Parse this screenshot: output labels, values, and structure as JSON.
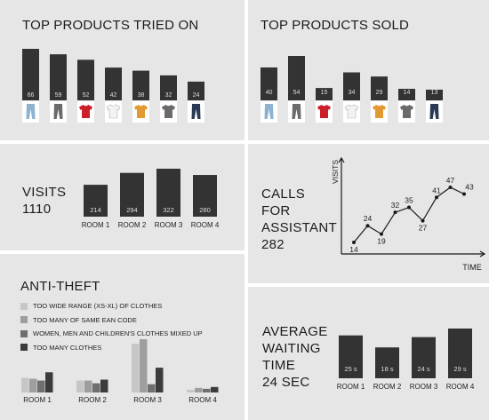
{
  "colors": {
    "bar": "#333333",
    "bar_label": "#dddddd",
    "panel": "#e6e6e7",
    "line": "#1a1a1a"
  },
  "chart_data": [
    {
      "type": "bar",
      "title": "TOP PRODUCTS TRIED ON",
      "categories": [
        "light-blue-jeans",
        "grey-jeans",
        "red-tshirt",
        "white-tshirt",
        "orange-tshirt",
        "grey-tshirt",
        "dark-jeans"
      ],
      "icons": [
        "jeans-light-icon",
        "jeans-grey-icon",
        "tshirt-red-icon",
        "tshirt-white-icon",
        "tshirt-orange-icon",
        "tshirt-grey-icon",
        "jeans-dark-icon"
      ],
      "values": [
        66,
        59,
        52,
        42,
        38,
        32,
        24
      ],
      "ylim": [
        0,
        66
      ]
    },
    {
      "type": "bar",
      "title": "TOP PRODUCTS SOLD",
      "categories": [
        "light-blue-jeans",
        "grey-jeans",
        "red-tshirt",
        "white-tshirt",
        "orange-tshirt",
        "grey-tshirt",
        "dark-jeans"
      ],
      "icons": [
        "jeans-light-icon",
        "jeans-grey-icon",
        "tshirt-red-icon",
        "tshirt-white-icon",
        "tshirt-orange-icon",
        "tshirt-grey-icon",
        "jeans-dark-icon"
      ],
      "values": [
        40,
        54,
        15,
        34,
        29,
        14,
        13
      ],
      "ylim": [
        0,
        54
      ]
    },
    {
      "type": "bar",
      "title": "VISITS",
      "total": "1110",
      "categories": [
        "ROOM 1",
        "ROOM 2",
        "ROOM 3",
        "ROOM 4"
      ],
      "values": [
        214,
        294,
        322,
        280
      ],
      "ylim": [
        0,
        322
      ]
    },
    {
      "type": "line",
      "title_lines": [
        "CALLS",
        "FOR",
        "ASSISTANT"
      ],
      "total": "282",
      "xlabel": "TIME",
      "ylabel": "VISITS",
      "values": [
        14,
        24,
        19,
        32,
        35,
        27,
        41,
        47,
        43
      ],
      "ylim": [
        10,
        50
      ]
    },
    {
      "type": "bar",
      "title": "ANTI-THEFT",
      "legend": [
        {
          "label": "TOO WIDE RANGE (XS-XL) OF CLOTHES",
          "color": "#c6c6c6"
        },
        {
          "label": "TOO MANY OF SAME EAN CODE",
          "color": "#9e9e9e"
        },
        {
          "label": "WOMEN, MEN AND CHILDREN'S CLOTHES MIXED UP",
          "color": "#6f6f6f"
        },
        {
          "label": "TOO MANY CLOTHES",
          "color": "#3c3c3c"
        }
      ],
      "categories": [
        "ROOM 1",
        "ROOM 2",
        "ROOM 3",
        "ROOM 4"
      ],
      "series": [
        {
          "values": [
            16,
            13,
            53,
            3
          ]
        },
        {
          "values": [
            15,
            13,
            58,
            5
          ]
        },
        {
          "values": [
            13,
            10,
            9,
            4
          ]
        },
        {
          "values": [
            22,
            14,
            27,
            6
          ]
        }
      ],
      "ylim": [
        0,
        60
      ]
    },
    {
      "type": "bar",
      "title_lines": [
        "AVERAGE",
        "WAITING",
        "TIME"
      ],
      "total": "24 SEC",
      "categories": [
        "ROOM 1",
        "ROOM 2",
        "ROOM 3",
        "ROOM 4"
      ],
      "values": [
        25,
        18,
        24,
        29
      ],
      "value_labels": [
        "25 s",
        "18 s",
        "24 s",
        "29 s"
      ],
      "ylim": [
        0,
        29
      ]
    }
  ]
}
